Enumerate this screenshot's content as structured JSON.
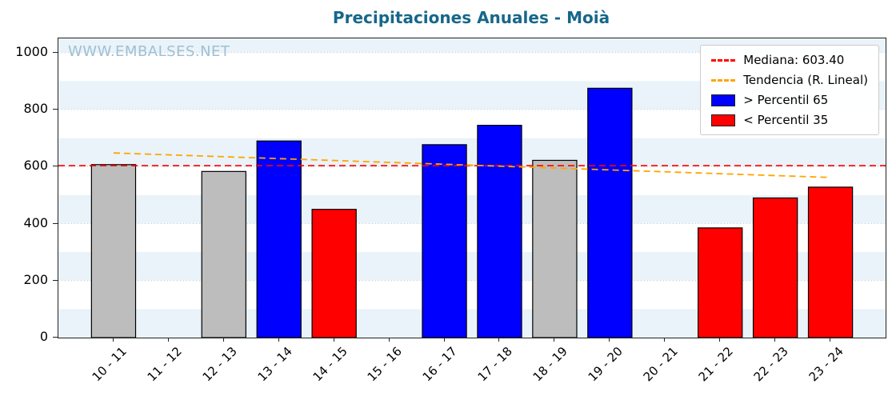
{
  "title": "Precipitaciones Anuales - Moià",
  "watermark": "WWW.EMBALSES.NET",
  "legend": {
    "items": [
      {
        "label": "Mediana: 603.40",
        "type": "line",
        "color": "#ff0000",
        "name": "legend-median"
      },
      {
        "label": "Tendencia (R. Lineal)",
        "type": "line",
        "color": "#ffa500",
        "name": "legend-trend"
      },
      {
        "label": "> Percentil 65",
        "type": "patch",
        "color": "#0000ff",
        "name": "legend-p65"
      },
      {
        "label": "< Percentil 35",
        "type": "patch",
        "color": "#ff0000",
        "name": "legend-p35"
      }
    ]
  },
  "colors": {
    "title": "#16678a",
    "watermark": "#9fc0d4",
    "band": "#e9f3f9",
    "grid": "#cccccc",
    "axis": "#222222",
    "bar_neutral": "#bdbdbd",
    "bar_p65": "#0000ff",
    "bar_p35": "#ff0000",
    "median": "#ff0000",
    "trend": "#ffa500"
  },
  "chart_data": {
    "type": "bar",
    "title": "Precipitaciones Anuales - Moià",
    "categories": [
      "10 - 11",
      "11 - 12",
      "12 - 13",
      "13 - 14",
      "14 - 15",
      "15 - 16",
      "16 - 17",
      "17 - 18",
      "18 - 19",
      "19 - 20",
      "20 - 21",
      "21 - 22",
      "22 - 23",
      "23 - 24"
    ],
    "values": [
      607,
      null,
      583,
      690,
      450,
      null,
      677,
      745,
      622,
      875,
      null,
      385,
      490,
      528
    ],
    "bar_classes": [
      "neutral",
      null,
      "neutral",
      "p65",
      "p35",
      null,
      "p65",
      "p65",
      "neutral",
      "p65",
      null,
      "p35",
      "p35",
      "p35"
    ],
    "median": 603.4,
    "trend_line": {
      "start": 648,
      "end": 562
    },
    "ylim": [
      0,
      1050
    ],
    "yticks": [
      0,
      200,
      400,
      600,
      800,
      1000
    ],
    "xlabel": "",
    "ylabel": "",
    "grid": true,
    "legend_position": "upper right"
  }
}
